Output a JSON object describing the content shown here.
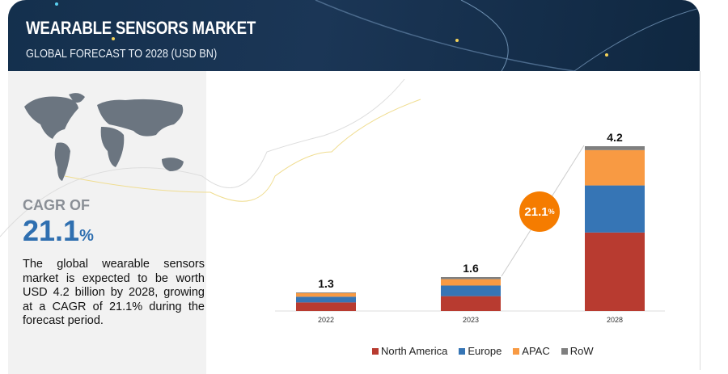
{
  "header": {
    "title": "WEARABLE SENSORS MARKET",
    "subtitle": "GLOBAL FORECAST TO 2028 (USD BN)"
  },
  "summary": {
    "cagr_label": "CAGR OF",
    "cagr_value": "21.1",
    "cagr_unit": "%",
    "description": "The global wearable sensors market is expected to be worth USD 4.2 billion by 2028, growing at a CAGR of 21.1% during the forecast period."
  },
  "chart_data": {
    "type": "bar",
    "stacked": true,
    "categories": [
      "2022",
      "2023",
      "2028"
    ],
    "totals": [
      "1.3",
      "1.6",
      "4.2"
    ],
    "series": [
      {
        "name": "North America",
        "color": "#b83b30",
        "values": [
          0.6,
          0.7,
          2.0
        ]
      },
      {
        "name": "Europe",
        "color": "#3675b5",
        "values": [
          0.4,
          0.5,
          1.2
        ]
      },
      {
        "name": "APAC",
        "color": "#f89a43",
        "values": [
          0.25,
          0.3,
          0.9
        ]
      },
      {
        "name": "RoW",
        "color": "#7f7f7f",
        "values": [
          0.05,
          0.1,
          0.1
        ]
      }
    ],
    "annotation": {
      "label": "21.1",
      "unit": "%",
      "color": "#f57c00"
    },
    "legend": "bottom",
    "grid": false
  }
}
